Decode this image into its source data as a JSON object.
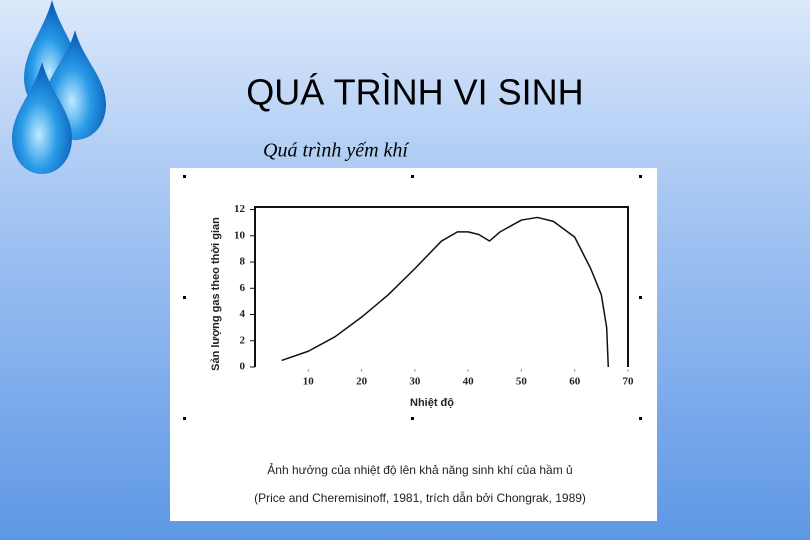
{
  "slide": {
    "title": "QUÁ TRÌNH VI SINH",
    "subtitle": "Quá trình yếm khí"
  },
  "chart_data": {
    "type": "line",
    "ylabel": "Sản lượng gas theo thời gian",
    "xlabel": "Nhiệt độ",
    "caption": [
      "Ảnh hưởng của nhiệt độ lên khả năng sinh khí của hầm ủ",
      "(Price and Cheremisinoff, 1981, trích dẫn bởi Chongrak, 1989)"
    ],
    "x": [
      5,
      10,
      15,
      20,
      25,
      30,
      35,
      38,
      40,
      42,
      44,
      46,
      50,
      53,
      56,
      60,
      63,
      65,
      66,
      66.3
    ],
    "series": [
      {
        "color": "#111111",
        "values": [
          0.5,
          1.2,
          2.3,
          3.8,
          5.5,
          7.5,
          9.6,
          10.3,
          10.3,
          10.1,
          9.6,
          10.3,
          11.2,
          11.4,
          11.1,
          9.9,
          7.5,
          5.5,
          3,
          0
        ]
      }
    ],
    "xlim": [
      0,
      70
    ],
    "xticks": [
      10,
      20,
      30,
      40,
      50,
      60,
      70
    ],
    "ylim": [
      0,
      12.5
    ],
    "yticks": [
      0,
      2,
      4,
      6,
      8,
      10,
      12
    ]
  }
}
